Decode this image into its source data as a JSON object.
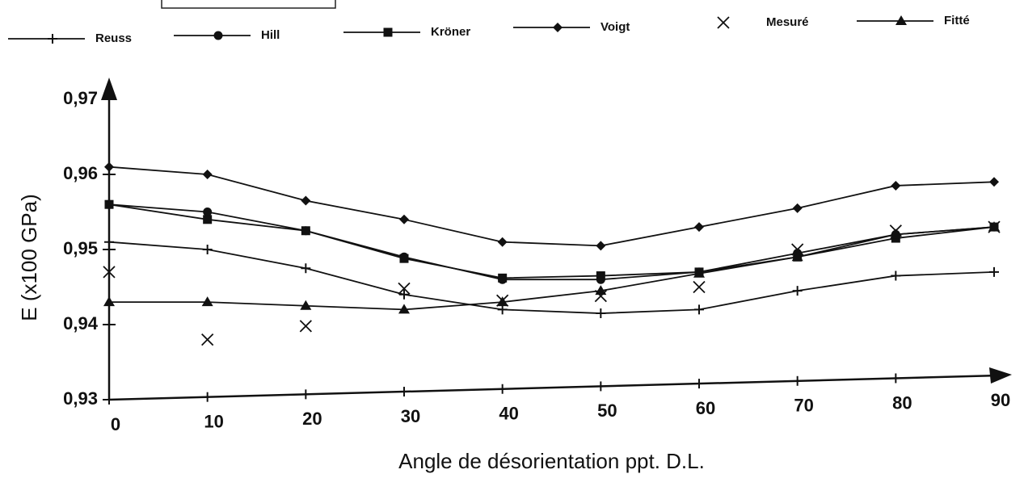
{
  "chart_data": {
    "type": "line",
    "xlabel": "Angle de désorientation ppt. D.L.",
    "ylabel": "E (x100 GPa)",
    "x": [
      0,
      10,
      20,
      30,
      40,
      50,
      60,
      70,
      80,
      90
    ],
    "xlim": [
      0,
      90
    ],
    "xticks": [
      0,
      10,
      20,
      30,
      40,
      50,
      60,
      70,
      80,
      90
    ],
    "ylim": [
      0.93,
      0.97
    ],
    "yticks": [
      {
        "value": 0.93,
        "label": "0,93"
      },
      {
        "value": 0.94,
        "label": "0,94"
      },
      {
        "value": 0.95,
        "label": "0,95"
      },
      {
        "value": 0.96,
        "label": "0,96"
      },
      {
        "value": 0.97,
        "label": "0,97"
      }
    ],
    "series": [
      {
        "name": "Reuss",
        "color": "#111111",
        "marker": "plus",
        "line": true,
        "values": [
          0.951,
          0.95,
          0.9475,
          0.944,
          0.942,
          0.9415,
          0.942,
          0.9445,
          0.9465,
          0.947
        ]
      },
      {
        "name": "Hill",
        "color": "#111111",
        "marker": "circle",
        "line": true,
        "values": [
          0.956,
          0.955,
          0.9525,
          0.949,
          0.946,
          0.946,
          0.947,
          0.9495,
          0.952,
          0.953
        ]
      },
      {
        "name": "Kröner",
        "color": "#111111",
        "marker": "square",
        "line": true,
        "values": [
          0.956,
          0.954,
          0.9525,
          0.9488,
          0.9462,
          0.9465,
          0.947,
          0.949,
          0.9515,
          0.953
        ]
      },
      {
        "name": "Voigt",
        "color": "#111111",
        "marker": "diamond",
        "line": true,
        "values": [
          0.961,
          0.96,
          0.9565,
          0.954,
          0.951,
          0.9505,
          0.953,
          0.9555,
          0.9585,
          0.959
        ]
      },
      {
        "name": "Mesuré",
        "color": "#111111",
        "marker": "x",
        "line": false,
        "values": [
          0.947,
          0.938,
          0.9398,
          0.9448,
          0.9432,
          0.9438,
          0.945,
          0.95,
          0.9525,
          0.953
        ]
      },
      {
        "name": "Fitté",
        "color": "#111111",
        "marker": "triangle",
        "line": true,
        "values": [
          0.943,
          0.943,
          0.9425,
          0.942,
          0.943,
          0.9445,
          0.9468,
          0.949,
          0.952,
          0.953
        ]
      }
    ]
  }
}
